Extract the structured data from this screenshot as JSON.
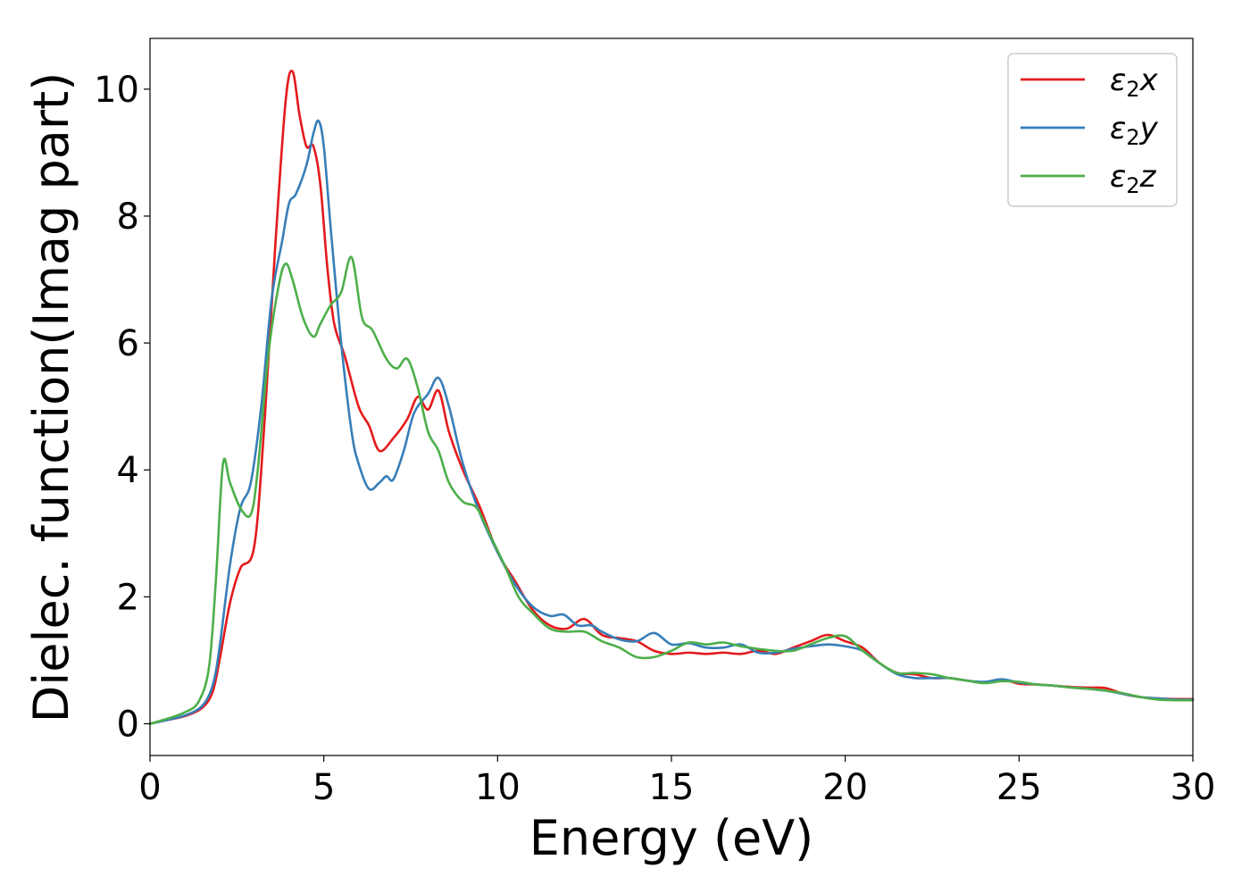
{
  "chart_data": {
    "type": "line",
    "xlabel": "Energy (eV)",
    "ylabel": "Dielec. function(Imag part)",
    "xlim": [
      0,
      30
    ],
    "ylim": [
      -0.5,
      10.8
    ],
    "xticks": [
      0,
      5,
      10,
      15,
      20,
      25,
      30
    ],
    "yticks": [
      0,
      2,
      4,
      6,
      8,
      10
    ],
    "grid": false,
    "legend_position": "top-right",
    "series": [
      {
        "name": "ε₂x",
        "label_base": "ε",
        "label_sub": "2",
        "label_var": "x",
        "color": "#e41a1c",
        "x": [
          0,
          0.5,
          1.0,
          1.5,
          1.8,
          2.0,
          2.3,
          2.6,
          3.0,
          3.3,
          3.6,
          3.9,
          4.1,
          4.3,
          4.5,
          4.7,
          4.9,
          5.1,
          5.3,
          5.6,
          6.0,
          6.3,
          6.6,
          7.0,
          7.4,
          7.7,
          8.0,
          8.3,
          8.6,
          9.0,
          9.5,
          10.0,
          10.5,
          11.0,
          11.5,
          12.0,
          12.5,
          13.0,
          13.5,
          14.0,
          14.5,
          15.0,
          15.5,
          16.0,
          16.5,
          17.0,
          17.5,
          18.0,
          18.5,
          19.0,
          19.5,
          20.0,
          20.5,
          21.0,
          21.5,
          22.0,
          22.5,
          23.0,
          23.5,
          24.0,
          24.5,
          25.0,
          25.5,
          26.0,
          26.5,
          27.0,
          27.5,
          28.0,
          28.5,
          29.0,
          29.5,
          30.0
        ],
        "y": [
          0.0,
          0.06,
          0.12,
          0.25,
          0.5,
          1.0,
          1.9,
          2.45,
          2.8,
          4.8,
          7.5,
          9.8,
          10.28,
          9.6,
          9.1,
          9.1,
          8.5,
          7.2,
          6.3,
          5.8,
          5.0,
          4.7,
          4.3,
          4.5,
          4.8,
          5.15,
          4.95,
          5.25,
          4.6,
          4.0,
          3.4,
          2.7,
          2.25,
          1.8,
          1.55,
          1.5,
          1.65,
          1.4,
          1.35,
          1.3,
          1.15,
          1.1,
          1.12,
          1.1,
          1.12,
          1.1,
          1.15,
          1.1,
          1.2,
          1.3,
          1.4,
          1.3,
          1.2,
          0.95,
          0.8,
          0.78,
          0.72,
          0.72,
          0.68,
          0.65,
          0.7,
          0.63,
          0.62,
          0.6,
          0.58,
          0.57,
          0.56,
          0.47,
          0.42,
          0.4,
          0.39,
          0.39
        ]
      },
      {
        "name": "ε₂y",
        "label_base": "ε",
        "label_sub": "2",
        "label_var": "y",
        "color": "#377eb8",
        "x": [
          0,
          0.5,
          1.0,
          1.5,
          1.8,
          2.0,
          2.3,
          2.6,
          2.9,
          3.2,
          3.5,
          3.8,
          4.0,
          4.2,
          4.5,
          4.7,
          4.85,
          5.0,
          5.2,
          5.5,
          5.8,
          6.0,
          6.3,
          6.6,
          6.8,
          7.0,
          7.3,
          7.6,
          8.0,
          8.3,
          8.6,
          9.0,
          9.5,
          10.0,
          10.5,
          11.0,
          11.5,
          11.9,
          12.3,
          12.7,
          13.0,
          13.5,
          14.0,
          14.5,
          15.0,
          15.5,
          16.0,
          16.5,
          17.0,
          17.5,
          18.0,
          18.5,
          19.0,
          19.5,
          20.0,
          20.5,
          21.0,
          21.5,
          22.0,
          22.5,
          23.0,
          23.5,
          24.0,
          24.5,
          25.0,
          25.5,
          26.0,
          26.5,
          27.0,
          27.5,
          28.0,
          28.5,
          29.0,
          29.5,
          30.0
        ],
        "y": [
          0.0,
          0.06,
          0.13,
          0.28,
          0.6,
          1.2,
          2.5,
          3.4,
          3.8,
          5.0,
          6.7,
          7.6,
          8.2,
          8.35,
          8.8,
          9.3,
          9.5,
          9.1,
          7.8,
          6.0,
          4.6,
          4.1,
          3.7,
          3.8,
          3.9,
          3.85,
          4.3,
          4.9,
          5.2,
          5.45,
          5.0,
          4.1,
          3.3,
          2.7,
          2.2,
          1.85,
          1.7,
          1.72,
          1.55,
          1.55,
          1.45,
          1.33,
          1.3,
          1.43,
          1.25,
          1.27,
          1.2,
          1.2,
          1.25,
          1.12,
          1.12,
          1.18,
          1.22,
          1.25,
          1.22,
          1.15,
          0.95,
          0.78,
          0.72,
          0.72,
          0.72,
          0.68,
          0.66,
          0.7,
          0.65,
          0.62,
          0.6,
          0.57,
          0.55,
          0.52,
          0.47,
          0.42,
          0.4,
          0.38,
          0.38
        ]
      },
      {
        "name": "ε₂z",
        "label_base": "ε",
        "label_sub": "2",
        "label_var": "z",
        "color": "#4daf4a",
        "x": [
          0,
          0.5,
          1.0,
          1.4,
          1.7,
          1.9,
          2.1,
          2.3,
          2.6,
          2.9,
          3.1,
          3.4,
          3.7,
          3.9,
          4.1,
          4.4,
          4.7,
          4.9,
          5.2,
          5.5,
          5.8,
          6.1,
          6.4,
          6.8,
          7.1,
          7.4,
          7.7,
          8.0,
          8.3,
          8.6,
          9.0,
          9.4,
          9.8,
          10.2,
          10.6,
          11.0,
          11.5,
          12.0,
          12.5,
          13.0,
          13.5,
          14.0,
          14.5,
          15.0,
          15.5,
          16.0,
          16.5,
          17.0,
          17.5,
          18.0,
          18.5,
          19.0,
          19.5,
          20.0,
          20.5,
          21.0,
          21.5,
          22.0,
          22.5,
          23.0,
          23.5,
          24.0,
          24.5,
          25.0,
          25.5,
          26.0,
          26.5,
          27.0,
          27.5,
          28.0,
          28.5,
          29.0,
          29.5,
          30.0
        ],
        "y": [
          0.0,
          0.08,
          0.18,
          0.35,
          0.9,
          2.3,
          4.1,
          3.8,
          3.4,
          3.3,
          4.0,
          5.8,
          6.9,
          7.25,
          7.0,
          6.4,
          6.1,
          6.3,
          6.6,
          6.8,
          7.35,
          6.4,
          6.2,
          5.75,
          5.6,
          5.75,
          5.3,
          4.6,
          4.3,
          3.8,
          3.5,
          3.4,
          2.95,
          2.5,
          2.0,
          1.75,
          1.5,
          1.45,
          1.45,
          1.3,
          1.2,
          1.05,
          1.05,
          1.15,
          1.28,
          1.25,
          1.28,
          1.22,
          1.18,
          1.15,
          1.15,
          1.25,
          1.35,
          1.38,
          1.15,
          0.95,
          0.8,
          0.8,
          0.78,
          0.72,
          0.68,
          0.64,
          0.67,
          0.66,
          0.62,
          0.6,
          0.57,
          0.55,
          0.52,
          0.48,
          0.42,
          0.38,
          0.37,
          0.37
        ]
      }
    ]
  }
}
